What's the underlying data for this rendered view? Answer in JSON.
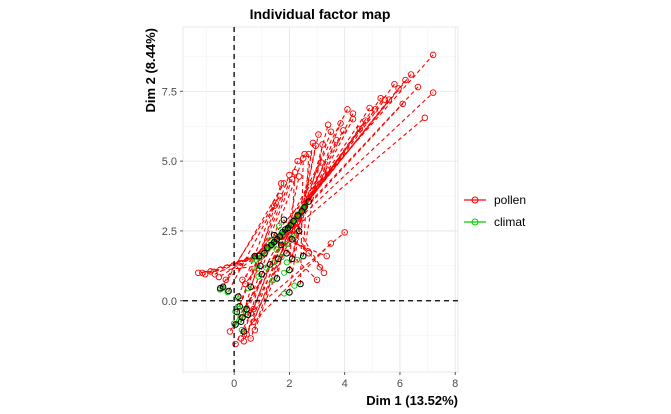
{
  "chart_data": {
    "type": "scatter",
    "title": "Individual factor map",
    "xlabel": "Dim 1 (13.52%)",
    "ylabel": "Dim 2 (8.44%)",
    "xlim": [
      -1.85,
      8.1
    ],
    "ylim": [
      -2.55,
      9.8
    ],
    "x_ticks": [
      0,
      2,
      4,
      6,
      8
    ],
    "y_ticks": [
      0.0,
      2.5,
      5.0,
      7.5
    ],
    "x_tick_labels": [
      "0",
      "2",
      "4",
      "6",
      "8"
    ],
    "y_tick_labels": [
      "0.0",
      "2.5",
      "5.0",
      "7.5"
    ],
    "grid": true,
    "reference_lines": {
      "x": 0,
      "y": 0,
      "style": "dashed",
      "color": "#000000"
    },
    "legend": {
      "position": "right"
    },
    "series": [
      {
        "name": "pollen",
        "color": "#ff0000",
        "line_style": "dashed"
      },
      {
        "name": "climat",
        "color": "#00cc00",
        "line_style": "dotted"
      }
    ],
    "centers": [
      [
        0.75,
        1.6
      ],
      [
        0.9,
        1.6
      ],
      [
        1.1,
        1.7
      ],
      [
        1.2,
        1.9
      ],
      [
        1.35,
        2.0
      ],
      [
        1.45,
        2.1
      ],
      [
        1.55,
        2.2
      ],
      [
        1.65,
        2.3
      ],
      [
        1.75,
        2.45
      ],
      [
        1.85,
        2.55
      ],
      [
        1.95,
        2.6
      ],
      [
        2.05,
        2.7
      ],
      [
        2.15,
        2.85
      ],
      [
        2.3,
        3.05
      ],
      [
        2.45,
        3.2
      ],
      [
        2.55,
        3.35
      ],
      [
        2.7,
        3.55
      ],
      [
        1.0,
        0.95
      ],
      [
        1.3,
        1.3
      ],
      [
        1.6,
        1.5
      ],
      [
        1.9,
        1.7
      ],
      [
        2.1,
        1.5
      ],
      [
        2.5,
        1.6
      ],
      [
        2.0,
        1.1
      ],
      [
        2.0,
        0.3
      ],
      [
        2.4,
        0.6
      ],
      [
        1.55,
        0.8
      ],
      [
        0.6,
        0.5
      ],
      [
        0.2,
        -0.2
      ],
      [
        0.1,
        -0.4
      ],
      [
        -0.4,
        0.5
      ],
      [
        -0.5,
        0.45
      ],
      [
        -0.2,
        0.35
      ],
      [
        0.15,
        0.15
      ],
      [
        0.3,
        -0.6
      ],
      [
        0.45,
        -0.3
      ],
      [
        0.25,
        -0.75
      ],
      [
        0.05,
        -0.85
      ],
      [
        0.5,
        -0.5
      ],
      [
        0.35,
        -1.1
      ],
      [
        1.45,
        2.35
      ],
      [
        1.8,
        2.9
      ],
      [
        2.1,
        2.2
      ],
      [
        1.7,
        2.0
      ],
      [
        2.35,
        2.5
      ],
      [
        0.95,
        1.25
      ]
    ],
    "pollen_points": [
      [
        7.2,
        8.8
      ],
      [
        7.2,
        7.45
      ],
      [
        6.9,
        6.55
      ],
      [
        6.65,
        7.65
      ],
      [
        6.4,
        8.1
      ],
      [
        6.2,
        7.9
      ],
      [
        6.1,
        7.05
      ],
      [
        5.95,
        7.6
      ],
      [
        5.8,
        7.75
      ],
      [
        5.6,
        7.2
      ],
      [
        5.45,
        7.2
      ],
      [
        5.3,
        7.25
      ],
      [
        5.1,
        6.85
      ],
      [
        4.9,
        6.9
      ],
      [
        4.75,
        6.45
      ],
      [
        4.55,
        6.15
      ],
      [
        4.3,
        6.5
      ],
      [
        4.1,
        6.85
      ],
      [
        3.95,
        6.1
      ],
      [
        3.7,
        5.75
      ],
      [
        3.5,
        6.05
      ],
      [
        3.4,
        6.3
      ],
      [
        3.2,
        5.6
      ],
      [
        2.95,
        5.55
      ],
      [
        2.85,
        5.65
      ],
      [
        2.5,
        5.1
      ],
      [
        2.35,
        4.45
      ],
      [
        2.1,
        4.35
      ],
      [
        2.3,
        5.0
      ],
      [
        2.0,
        4.5
      ],
      [
        1.8,
        4.2
      ],
      [
        1.65,
        3.75
      ],
      [
        1.5,
        3.5
      ],
      [
        1.45,
        3.4
      ],
      [
        1.7,
        4.2
      ],
      [
        2.55,
        5.25
      ],
      [
        3.15,
        4.95
      ],
      [
        3.35,
        4.7
      ],
      [
        4.0,
        2.45
      ],
      [
        3.5,
        2.05
      ],
      [
        3.35,
        1.6
      ],
      [
        3.1,
        1.2
      ],
      [
        2.7,
        1.7
      ],
      [
        3.0,
        0.75
      ],
      [
        3.25,
        1.0
      ],
      [
        -1.3,
        1.0
      ],
      [
        -1.15,
        1.0
      ],
      [
        -1.05,
        0.95
      ],
      [
        -0.85,
        1.05
      ],
      [
        -0.7,
        0.95
      ],
      [
        -0.55,
        0.85
      ],
      [
        -0.3,
        0.75
      ],
      [
        0.2,
        1.25
      ],
      [
        0.3,
        0.75
      ],
      [
        0.4,
        0.6
      ],
      [
        0.25,
        -1.35
      ],
      [
        0.45,
        -1.2
      ],
      [
        0.6,
        -1.35
      ],
      [
        0.7,
        -0.75
      ],
      [
        0.75,
        -1.05
      ],
      [
        0.05,
        -1.55
      ],
      [
        0.35,
        -1.45
      ],
      [
        -0.15,
        -1.1
      ],
      [
        0.6,
        -0.45
      ],
      [
        0.7,
        -0.3
      ],
      [
        4.3,
        6.7
      ],
      [
        3.85,
        6.35
      ],
      [
        3.05,
        5.95
      ],
      [
        2.7,
        5.25
      ],
      [
        2.2,
        4.6
      ]
    ]
  },
  "legend_items": [
    {
      "label": "pollen",
      "color": "#ff0000"
    },
    {
      "label": "climat",
      "color": "#00cc00"
    }
  ]
}
